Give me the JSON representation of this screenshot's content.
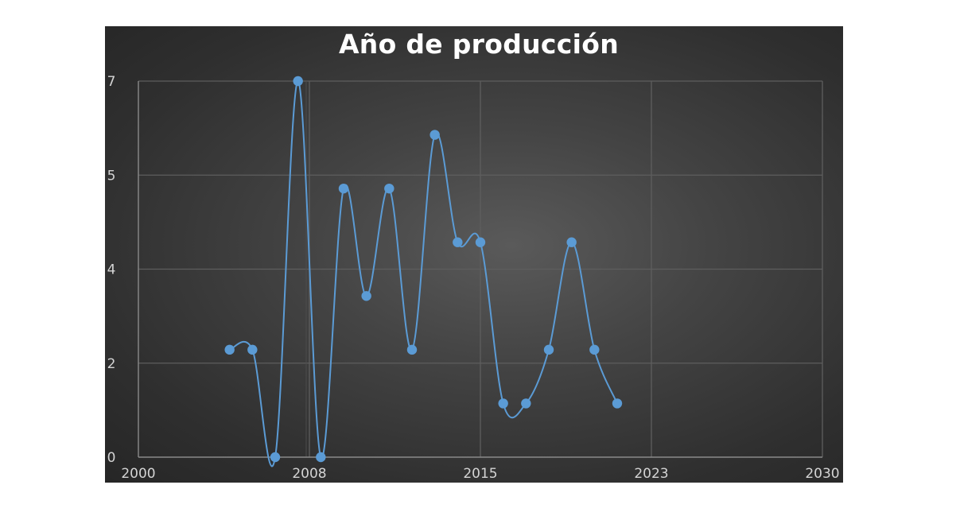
{
  "chart_data": {
    "type": "line",
    "smooth": true,
    "title": "Año de producción",
    "xlabel": "",
    "ylabel": "",
    "x_ticks": [
      "2000",
      "2008",
      "2015",
      "2023",
      "2030"
    ],
    "y_ticks": [
      "0",
      "2",
      "4",
      "5",
      "7"
    ],
    "xlim": [
      2000,
      2030
    ],
    "ylim": [
      0,
      7
    ],
    "grid": true,
    "legend": "none",
    "series": [
      {
        "color": "#5b9bd5",
        "points": [
          {
            "x": 2004,
            "y": 2
          },
          {
            "x": 2005,
            "y": 2
          },
          {
            "x": 2006,
            "y": 0
          },
          {
            "x": 2007,
            "y": 7
          },
          {
            "x": 2008,
            "y": 0
          },
          {
            "x": 2009,
            "y": 5
          },
          {
            "x": 2010,
            "y": 3
          },
          {
            "x": 2011,
            "y": 5
          },
          {
            "x": 2012,
            "y": 2
          },
          {
            "x": 2013,
            "y": 6
          },
          {
            "x": 2014,
            "y": 4
          },
          {
            "x": 2015,
            "y": 4
          },
          {
            "x": 2016,
            "y": 1
          },
          {
            "x": 2017,
            "y": 1
          },
          {
            "x": 2018,
            "y": 2
          },
          {
            "x": 2019,
            "y": 4
          },
          {
            "x": 2020,
            "y": 2
          },
          {
            "x": 2021,
            "y": 1
          }
        ]
      }
    ]
  },
  "colors": {
    "panel_bg": "#383838",
    "grid": "#5e5e5e",
    "axis_text": "#d4d4d4",
    "title": "#ffffff",
    "series": "#5b9bd5"
  }
}
